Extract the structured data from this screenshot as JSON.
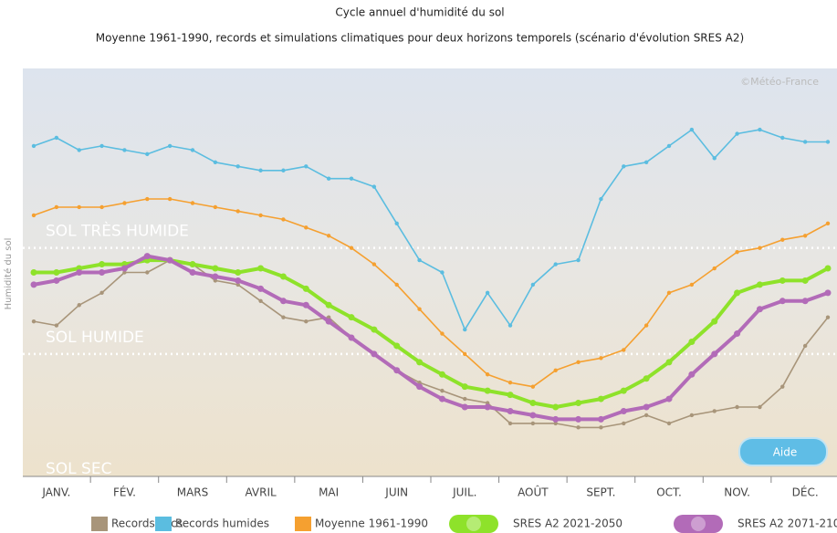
{
  "chart_data": {
    "type": "line",
    "title": "Cycle annuel d'humidité du sol",
    "subtitle": "Moyenne 1961-1990, records et simulations climatiques pour deux horizons temporels (scénario d'évolution SRES A2)",
    "ylabel": "Humidité du sol",
    "credit": "©Météo-France",
    "button": "Aide",
    "ylim": [
      0,
      100
    ],
    "zones": [
      {
        "label": "SOL TRÈS HUMIDE",
        "value": 56
      },
      {
        "label": "SOL HUMIDE",
        "value": 30
      },
      {
        "label": "SOL SEC"
      }
    ],
    "categories": [
      null,
      "JANV.",
      null,
      null,
      "FÉV.",
      null,
      null,
      "MARS",
      null,
      null,
      "AVRIL",
      null,
      null,
      "MAI",
      null,
      null,
      "JUIN",
      null,
      null,
      "JUIL.",
      null,
      null,
      "AOÛT",
      null,
      null,
      "SEPT.",
      null,
      null,
      "OCT.",
      null,
      null,
      "NOV.",
      null,
      null,
      "DÉC.",
      null
    ],
    "series": [
      {
        "name": "Records secs",
        "color": "#a8957a",
        "values": [
          38,
          37,
          42,
          45,
          50,
          50,
          53,
          52,
          48,
          47,
          43,
          39,
          38,
          39,
          34,
          30,
          26,
          23,
          21,
          19,
          18,
          13,
          13,
          13,
          12,
          12,
          13,
          15,
          13,
          15,
          16,
          17,
          17,
          22,
          32,
          39
        ]
      },
      {
        "name": "Records humides",
        "color": "#5bbde0",
        "values": [
          81,
          83,
          80,
          81,
          80,
          79,
          81,
          80,
          77,
          76,
          75,
          75,
          76,
          73,
          73,
          71,
          62,
          53,
          50,
          36,
          45,
          37,
          47,
          52,
          53,
          68,
          76,
          77,
          81,
          85,
          78,
          84,
          85,
          83,
          82,
          82
        ]
      },
      {
        "name": "Moyenne 1961-1990",
        "color": "#f5a030",
        "values": [
          64,
          66,
          66,
          66,
          67,
          68,
          68,
          67,
          66,
          65,
          64,
          63,
          61,
          59,
          56,
          52,
          47,
          41,
          35,
          30,
          25,
          23,
          22,
          26,
          28,
          29,
          31,
          37,
          45,
          47,
          51,
          55,
          56,
          58,
          59,
          62
        ]
      },
      {
        "name": "SRES A2 2021-2050",
        "color": "#8ee22a",
        "values": [
          50,
          50,
          51,
          52,
          52,
          53,
          53,
          52,
          51,
          50,
          51,
          49,
          46,
          42,
          39,
          36,
          32,
          28,
          25,
          22,
          21,
          20,
          18,
          17,
          18,
          19,
          21,
          24,
          28,
          33,
          38,
          45,
          47,
          48,
          48,
          51
        ]
      },
      {
        "name": "SRES A2 2071-2100",
        "color": "#b26bb8",
        "values": [
          47,
          48,
          50,
          50,
          51,
          54,
          53,
          50,
          49,
          48,
          46,
          43,
          42,
          38,
          34,
          30,
          26,
          22,
          19,
          17,
          17,
          16,
          15,
          14,
          14,
          14,
          16,
          17,
          19,
          25,
          30,
          35,
          41,
          43,
          43,
          45
        ]
      }
    ]
  }
}
